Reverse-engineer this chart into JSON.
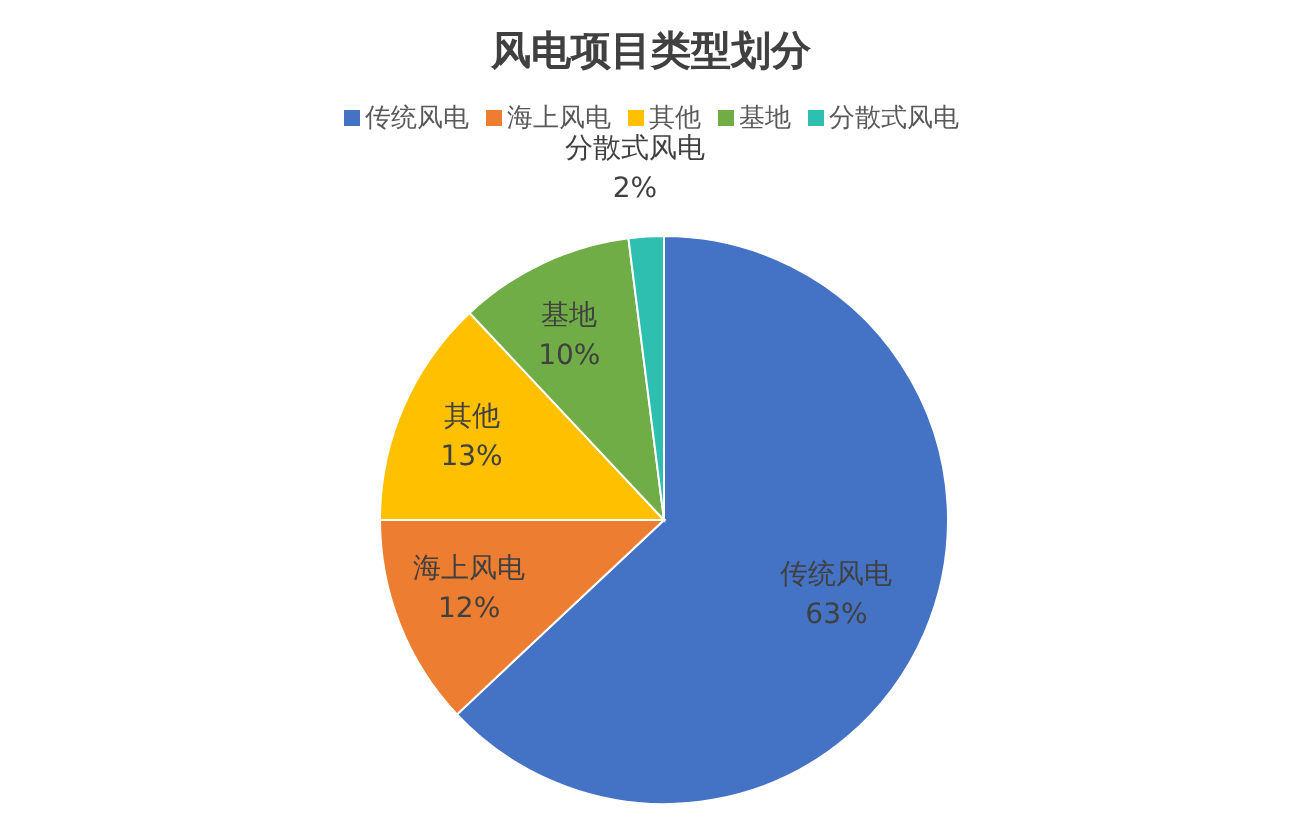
{
  "chart_data": {
    "type": "pie",
    "title": "风电项目类型划分",
    "categories": [
      "传统风电",
      "海上风电",
      "其他",
      "基地",
      "分散式风电"
    ],
    "values": [
      63,
      12,
      13,
      10,
      2
    ],
    "value_labels": [
      "63%",
      "12%",
      "13%",
      "10%",
      "2%"
    ],
    "colors": [
      "#4472c4",
      "#ed7d31",
      "#ffc000",
      "#70ad47",
      "#2ebfb0"
    ],
    "legend": "top"
  }
}
